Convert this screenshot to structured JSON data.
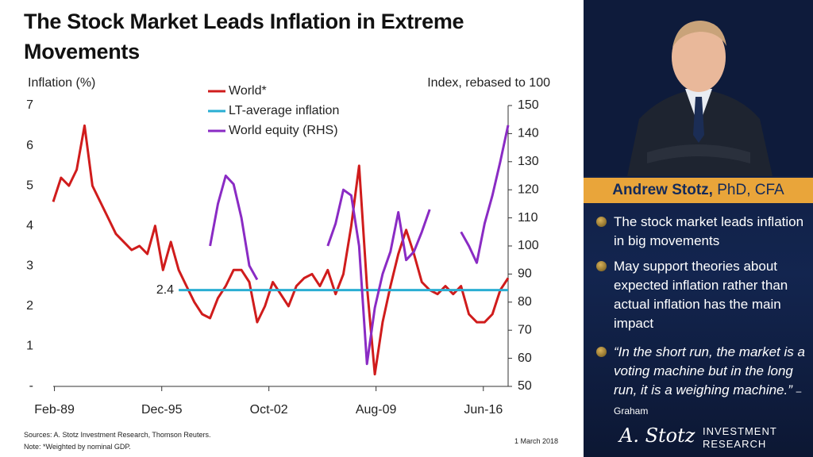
{
  "chart_data": {
    "type": "line",
    "title": "The Stock Market Leads Inflation in Extreme Movements",
    "ylabel": "Inflation (%)",
    "y2label": "Index, rebased to 100",
    "x": [
      1989.0,
      1989.5,
      1990.0,
      1990.5,
      1991.0,
      1991.5,
      1992.0,
      1992.5,
      1993.0,
      1993.5,
      1994.0,
      1994.5,
      1995.0,
      1995.5,
      1996.0,
      1996.5,
      1997.0,
      1997.5,
      1998.0,
      1998.5,
      1999.0,
      1999.5,
      2000.0,
      2000.5,
      2001.0,
      2001.5,
      2002.0,
      2002.5,
      2003.0,
      2003.5,
      2004.0,
      2004.5,
      2005.0,
      2005.5,
      2006.0,
      2006.5,
      2007.0,
      2007.5,
      2008.0,
      2008.5,
      2009.0,
      2009.5,
      2010.0,
      2010.5,
      2011.0,
      2011.5,
      2012.0,
      2012.5,
      2013.0,
      2013.5,
      2014.0,
      2014.5,
      2015.0,
      2015.5,
      2016.0,
      2016.5,
      2017.0,
      2017.5,
      2018.0
    ],
    "series": [
      {
        "name": "World*",
        "color": "#d01c1c",
        "axis": "y",
        "values": [
          4.6,
          5.2,
          5.0,
          5.4,
          6.5,
          5.0,
          4.6,
          4.2,
          3.8,
          3.6,
          3.4,
          3.5,
          3.3,
          4.0,
          2.9,
          3.6,
          2.9,
          2.5,
          2.1,
          1.8,
          1.7,
          2.2,
          2.5,
          2.9,
          2.9,
          2.6,
          1.6,
          2.0,
          2.6,
          2.3,
          2.0,
          2.5,
          2.7,
          2.8,
          2.5,
          2.9,
          2.3,
          2.8,
          4.0,
          5.5,
          2.5,
          0.3,
          1.6,
          2.5,
          3.3,
          3.9,
          3.3,
          2.6,
          2.4,
          2.3,
          2.5,
          2.3,
          2.5,
          1.8,
          1.6,
          1.6,
          1.8,
          2.4,
          2.7
        ]
      },
      {
        "name": "LT-average inflation",
        "color": "#2aaed3",
        "axis": "y",
        "value": 2.4,
        "x_start": 1997.0
      },
      {
        "name": "World equity (RHS)",
        "color": "#8a2bc4",
        "axis": "y2",
        "values": [
          null,
          null,
          null,
          null,
          null,
          null,
          null,
          null,
          null,
          null,
          null,
          null,
          null,
          null,
          null,
          null,
          null,
          null,
          null,
          null,
          100,
          115,
          125,
          122,
          110,
          93,
          88,
          null,
          null,
          null,
          null,
          null,
          null,
          null,
          null,
          100,
          108,
          120,
          118,
          100,
          58,
          78,
          90,
          98,
          112,
          95,
          98,
          105,
          113,
          null,
          null,
          null,
          105,
          100,
          94,
          108,
          118,
          130,
          143
        ]
      }
    ],
    "xlim": [
      1989.0,
      2018.0
    ],
    "xticks": [
      {
        "value": 1989.08,
        "label": "Feb-89"
      },
      {
        "value": 1995.92,
        "label": "Dec-95"
      },
      {
        "value": 2002.75,
        "label": "Oct-02"
      },
      {
        "value": 2009.58,
        "label": "Aug-09"
      },
      {
        "value": 2016.42,
        "label": "Jun-16"
      }
    ],
    "ylim": [
      0,
      7
    ],
    "yticks": [
      {
        "value": 0,
        "label": "-"
      },
      1,
      2,
      3,
      4,
      5,
      6,
      7
    ],
    "y2lim": [
      50,
      150
    ],
    "y2ticks": [
      50,
      60,
      70,
      80,
      90,
      100,
      110,
      120,
      130,
      140,
      150
    ],
    "grid": false,
    "legend": "top"
  },
  "footer": {
    "sources": "Sources: A. Stotz Investment Research, Thomson Reuters.",
    "note": "Note: *Weighted by nominal GDP.",
    "date": "1 March 2018"
  },
  "panel": {
    "name": "Andrew Stotz,",
    "credentials": "PhD, CFA",
    "bullets": [
      "The stock market leads inflation in big movements",
      "May support theories about expected inflation rather than actual inflation has the main impact"
    ],
    "quote": "“In the short run, the market is a voting machine but in the long run, it is a weighing machine.”",
    "quote_attribution": "– Graham",
    "logo_signature": "A. Stotz",
    "logo_text": "INVESTMENT RESEARCH"
  }
}
